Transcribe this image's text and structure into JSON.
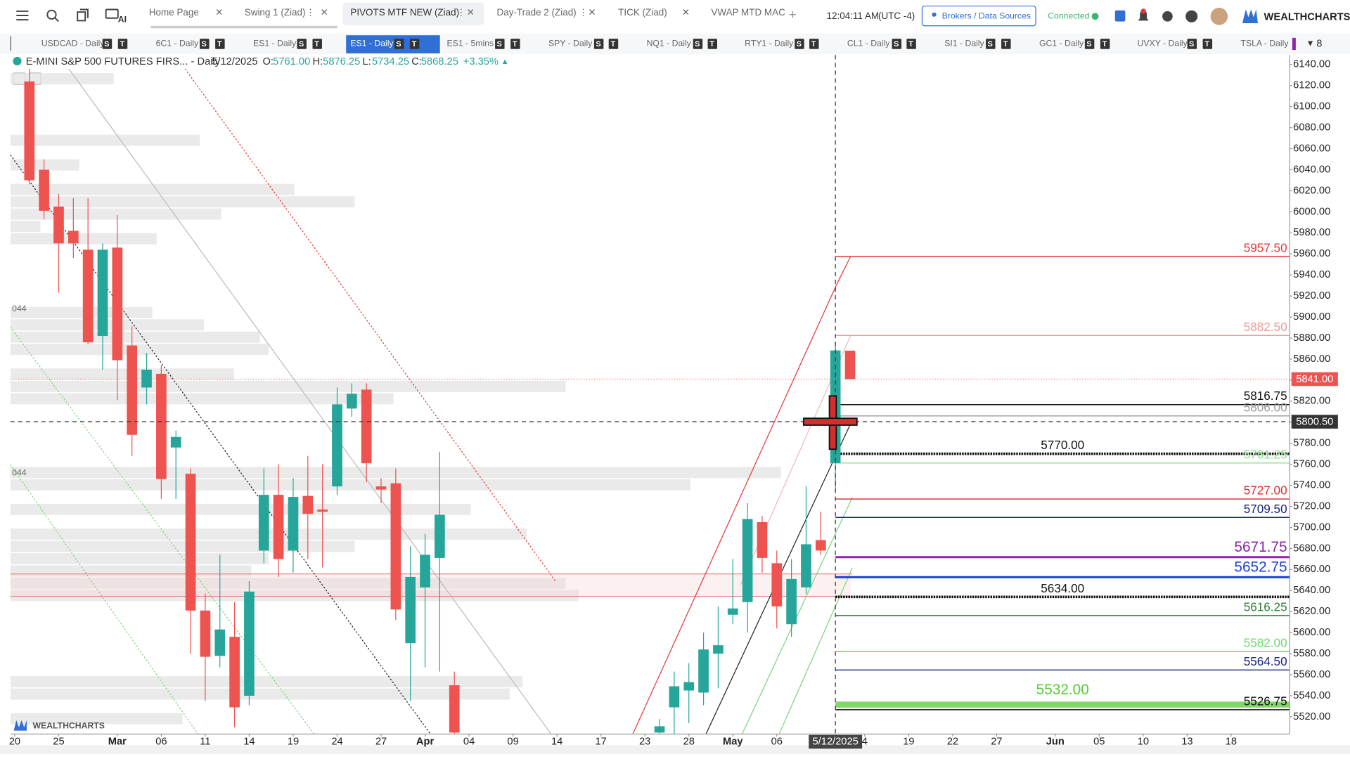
{
  "toolbar": {
    "tabs": [
      "Home Page",
      "Swing 1 (Ziad)",
      "PIVOTS MTF NEW (Ziad)",
      "Day-Trade 2 (Ziad)",
      "TICK (Ziad)",
      "VWAP MTD MAC"
    ],
    "ai": "AI",
    "time": "12:04:11 AM",
    "timezone": "(UTC -4)",
    "brokers": "Brokers / Data Sources",
    "status": "Connected",
    "brand": "WEALTHCHARTS"
  },
  "symbol_bar": {
    "symbols": [
      "USDCAD - Daily",
      "6C1 - Daily",
      "ES1 - Daily",
      "ES1 - Daily",
      "ES1 - 5mins",
      "SPY - Daily",
      "NQ1 - Daily",
      "RTY1 - Daily",
      "CL1 - Daily",
      "SI1 - Daily",
      "GC1 - Daily",
      "UVXY - Daily",
      "TSLA - Daily"
    ],
    "badges": [
      "S",
      "T"
    ],
    "more": "8"
  },
  "chart_header": {
    "name": "E-MINI S&P 500 FUTURES FIRS... - Daily",
    "date": "5/12/2025",
    "o_label": "O:",
    "open": "5761.00",
    "h_label": "H:",
    "high": "5876.25",
    "l_label": "L:",
    "low": "5734.25",
    "c_label": "C:",
    "close": "5868.25",
    "change": "+3.35%"
  },
  "profile_labels": [
    "044",
    "044"
  ],
  "watermark": "WEALTHCHARTS",
  "chart_data": {
    "type": "candlestick",
    "up_color": "#26a69a",
    "down_color": "#ef5350",
    "x": [
      1,
      2,
      3,
      4,
      5,
      6,
      7,
      8,
      9,
      10,
      11,
      12,
      13,
      14,
      15,
      16,
      17,
      18,
      19,
      20,
      21,
      22,
      23,
      24,
      25,
      26,
      27,
      28,
      29,
      30,
      44,
      45,
      46,
      47,
      48,
      49,
      50,
      51,
      52,
      53,
      54,
      55,
      56,
      57
    ],
    "open": [
      6124,
      6040,
      6005,
      5982,
      5964,
      5882,
      5966,
      5873,
      5833,
      5846,
      5776,
      5751,
      5621,
      5578,
      5596,
      5540,
      5678,
      5731,
      5678,
      5730,
      5717,
      5739,
      5813,
      5831,
      5739,
      5742,
      5590,
      5643,
      5671,
      5550,
      5505,
      5529,
      5545,
      5543,
      5580,
      5617,
      5629,
      5705,
      5666,
      5608,
      5643,
      5688,
      5761,
      5868
    ],
    "high": [
      6136,
      6050,
      6017,
      6013,
      6013,
      5970,
      5997,
      5891,
      5866,
      5854,
      5792,
      5756,
      5637,
      5674,
      5629,
      5649,
      5756,
      5760,
      5747,
      5768,
      5760,
      5833,
      5837,
      5837,
      5747,
      5756,
      5682,
      5694,
      5772,
      5563,
      5518,
      5563,
      5571,
      5600,
      5625,
      5670,
      5723,
      5711,
      5678,
      5670,
      5739,
      5715,
      5876.25,
      5868
    ],
    "low": [
      6026,
      5993,
      5923,
      5956,
      5874,
      5850,
      5821,
      5768,
      5817,
      5727,
      5727,
      5580,
      5535,
      5567,
      5510,
      5531,
      5666,
      5653,
      5657,
      5670,
      5662,
      5731,
      5805,
      5743,
      5723,
      5612,
      5535,
      5567,
      5563,
      5504,
      5504,
      5504,
      5514,
      5531,
      5547,
      5608,
      5600,
      5657,
      5604,
      5596,
      5637,
      5674,
      5734.25,
      5841
    ],
    "close": [
      6030,
      6001,
      5970,
      5970,
      5876,
      5964,
      5859,
      5788,
      5850,
      5746,
      5786,
      5621,
      5577,
      5603,
      5529,
      5639,
      5731,
      5670,
      5729,
      5713,
      5715,
      5817,
      5827,
      5761,
      5736,
      5622,
      5653,
      5674,
      5712,
      5505,
      5511,
      5549,
      5553,
      5584,
      5588,
      5623,
      5708,
      5671,
      5625,
      5651,
      5684,
      5678,
      5868.25,
      5841
    ],
    "xlim": [
      -0.3,
      87
    ],
    "xticks": [
      {
        "value": 0,
        "label": "20"
      },
      {
        "value": 3,
        "label": "25"
      },
      {
        "value": 7,
        "label": "Mar"
      },
      {
        "value": 10,
        "label": "06"
      },
      {
        "value": 13,
        "label": "11"
      },
      {
        "value": 16,
        "label": "14"
      },
      {
        "value": 19,
        "label": "19"
      },
      {
        "value": 22,
        "label": "24"
      },
      {
        "value": 25,
        "label": "27"
      },
      {
        "value": 28,
        "label": "Apr"
      },
      {
        "value": 31,
        "label": "04"
      },
      {
        "value": 34,
        "label": "09"
      },
      {
        "value": 37,
        "label": "14"
      },
      {
        "value": 40,
        "label": "17"
      },
      {
        "value": 43,
        "label": "23"
      },
      {
        "value": 46,
        "label": "28"
      },
      {
        "value": 49,
        "label": "May"
      },
      {
        "value": 52,
        "label": "06"
      },
      {
        "value": 56,
        "label": "5/12/2025"
      },
      {
        "value": 58,
        "label": "4"
      },
      {
        "value": 61,
        "label": "19"
      },
      {
        "value": 64,
        "label": "22"
      },
      {
        "value": 67,
        "label": "27"
      },
      {
        "value": 71,
        "label": "Jun"
      },
      {
        "value": 74,
        "label": "05"
      },
      {
        "value": 77,
        "label": "10"
      },
      {
        "value": 80,
        "label": "13"
      },
      {
        "value": 83,
        "label": "18"
      }
    ],
    "ylim": [
      5503.6,
      6149
    ],
    "yticks": [
      {
        "value": 6140,
        "label": "6140.00"
      },
      {
        "value": 6120,
        "label": "6120.00"
      },
      {
        "value": 6100,
        "label": "6100.00"
      },
      {
        "value": 6080,
        "label": "6080.00"
      },
      {
        "value": 6060,
        "label": "6060.00"
      },
      {
        "value": 6040,
        "label": "6040.00"
      },
      {
        "value": 6020,
        "label": "6020.00"
      },
      {
        "value": 6000,
        "label": "6000.00"
      },
      {
        "value": 5980,
        "label": "5980.00"
      },
      {
        "value": 5960,
        "label": "5960.00"
      },
      {
        "value": 5940,
        "label": "5940.00"
      },
      {
        "value": 5920,
        "label": "5920.00"
      },
      {
        "value": 5900,
        "label": "5900.00"
      },
      {
        "value": 5880,
        "label": "5880.00"
      },
      {
        "value": 5860,
        "label": "5860.00"
      },
      {
        "value": 5840,
        "label": "5840.00"
      },
      {
        "value": 5820,
        "label": "5820.00"
      },
      {
        "value": 5800,
        "label": "5800.00"
      },
      {
        "value": 5780,
        "label": "5780.00"
      },
      {
        "value": 5760,
        "label": "5760.00"
      },
      {
        "value": 5740,
        "label": "5740.00"
      },
      {
        "value": 5720,
        "label": "5720.00"
      },
      {
        "value": 5700,
        "label": "5700.00"
      },
      {
        "value": 5680,
        "label": "5680.00"
      },
      {
        "value": 5660,
        "label": "5660.00"
      },
      {
        "value": 5640,
        "label": "5640.00"
      },
      {
        "value": 5620,
        "label": "5620.00"
      },
      {
        "value": 5600,
        "label": "5600.00"
      },
      {
        "value": 5580,
        "label": "5580.00"
      },
      {
        "value": 5560,
        "label": "5560.00"
      },
      {
        "value": 5540,
        "label": "5540.00"
      },
      {
        "value": 5520,
        "label": "5520.00"
      }
    ],
    "levels": [
      {
        "value": 5957.5,
        "label": "5957.50",
        "color": "#e53935",
        "style": "solid",
        "label_position": "right",
        "label_size": "normal"
      },
      {
        "value": 5882.5,
        "label": "5882.50",
        "color": "#ef9a9a",
        "style": "solid",
        "label_position": "right",
        "label_size": "normal"
      },
      {
        "value": 5816.75,
        "label": "5816.75",
        "color": "#111111",
        "style": "solid",
        "label_position": "right",
        "label_size": "normal"
      },
      {
        "value": 5806,
        "label": "5806.00",
        "color": "#999999",
        "style": "solid",
        "label_position": "right",
        "label_size": "normal"
      },
      {
        "value": 5770,
        "label": "5770.00",
        "color": "#111111",
        "style": "dotted",
        "label_position": "center",
        "label_size": "normal"
      },
      {
        "value": 5761.25,
        "label": "5761.25",
        "color": "#8fe08f",
        "style": "solid",
        "label_position": "right",
        "label_size": "normal"
      },
      {
        "value": 5727,
        "label": "5727.00",
        "color": "#d32f2f",
        "style": "solid",
        "label_position": "right",
        "label_size": "normal"
      },
      {
        "value": 5709.5,
        "label": "5709.50",
        "color": "#1a237e",
        "style": "solid",
        "label_position": "right",
        "label_size": "normal"
      },
      {
        "value": 5671.75,
        "label": "5671.75",
        "color": "#8e24aa",
        "style": "thick",
        "label_position": "right",
        "label_size": "large"
      },
      {
        "value": 5652.75,
        "label": "5652.75",
        "color": "#1a3fd6",
        "style": "thick",
        "label_position": "right",
        "label_size": "large"
      },
      {
        "value": 5634,
        "label": "5634.00",
        "color": "#111111",
        "style": "dotted",
        "label_position": "center",
        "label_size": "normal"
      },
      {
        "value": 5616.25,
        "label": "5616.25",
        "color": "#2e7d32",
        "style": "solid",
        "label_position": "right",
        "label_size": "normal"
      },
      {
        "value": 5582,
        "label": "5582.00",
        "color": "#66dd66",
        "style": "solid",
        "label_position": "right",
        "label_size": "normal"
      },
      {
        "value": 5564.5,
        "label": "5564.50",
        "color": "#1a237e",
        "style": "solid",
        "label_position": "right",
        "label_size": "normal"
      },
      {
        "value": 5532,
        "label": "5532.00",
        "color": "#55cc33",
        "style": "band",
        "label_position": "center",
        "label_size": "large"
      },
      {
        "value": 5526.75,
        "label": "5526.75",
        "color": "#111111",
        "style": "solid",
        "label_position": "right",
        "label_size": "normal"
      }
    ],
    "price_tags": [
      {
        "value": 5841,
        "label": "5841.00",
        "color": "#ef5350"
      },
      {
        "value": 5800.5,
        "label": "5800.50",
        "color": "#333333"
      }
    ],
    "crosshair": {
      "x": 56,
      "y": 5800.5
    }
  }
}
